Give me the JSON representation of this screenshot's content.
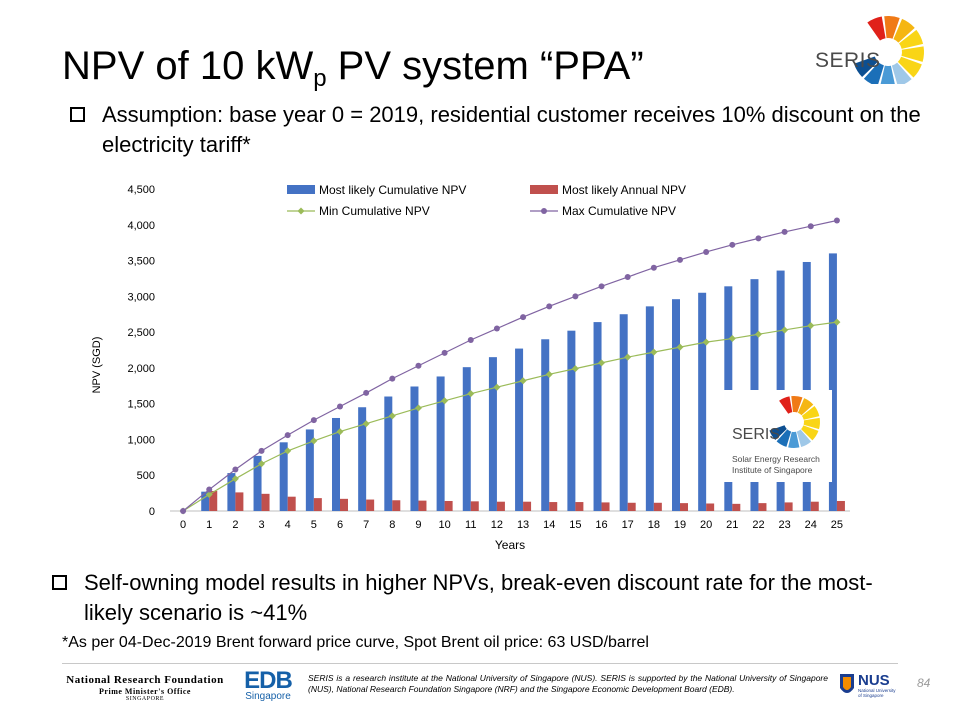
{
  "slide": {
    "title_pre": "NPV of 10 kW",
    "title_sub": "p",
    "title_post": " PV system “PPA”",
    "logo_text": "SERIS",
    "bullet1": "Assumption: base year 0 = 2019, residential customer receives 10% discount on the electricity tariff*",
    "bullet2": "Self-owning model results in higher NPVs, break-even discount rate for the most-likely scenario is ~41%",
    "footnote": "*As per 04-Dec-2019 Brent forward price curve, Spot Brent oil price: 63 USD/barrel",
    "page_number": "84"
  },
  "footer": {
    "nrf_line1": "National Research Foundation",
    "nrf_line2": "Prime Minister's Office",
    "nrf_line3": "SINGAPORE",
    "edb_line1": "EDB",
    "edb_line2": "Singapore",
    "disclaimer": "SERIS is a research institute at the National University of Singapore (NUS). SERIS is supported by the National University of Singapore (NUS), National Research Foundation Singapore (NRF) and the Singapore Economic Development Board (EDB).",
    "nus_label": "NUS",
    "nus_sub1": "National University",
    "nus_sub2": "of Singapore"
  },
  "inset_logo": {
    "name": "SERIS",
    "line1": "Solar Energy Research",
    "line2": "Institute of Singapore"
  },
  "chart_data": {
    "type": "bar",
    "xlabel": "Years",
    "ylabel": "NPV (SGD)",
    "ylim": [
      0,
      4500
    ],
    "yticks": [
      0,
      500,
      1000,
      1500,
      2000,
      2500,
      3000,
      3500,
      4000,
      4500
    ],
    "grid": false,
    "legend_position": "top",
    "x": [
      0,
      1,
      2,
      3,
      4,
      5,
      6,
      7,
      8,
      9,
      10,
      11,
      12,
      13,
      14,
      15,
      16,
      17,
      18,
      19,
      20,
      21,
      22,
      23,
      24,
      25
    ],
    "series": [
      {
        "name": "Most likely Cumulative NPV",
        "type": "bar",
        "color": "#4472c4",
        "values": [
          0,
          270,
          530,
          770,
          960,
          1140,
          1300,
          1450,
          1600,
          1740,
          1880,
          2010,
          2150,
          2270,
          2400,
          2520,
          2640,
          2750,
          2860,
          2960,
          3050,
          3140,
          3240,
          3360,
          3480,
          3600
        ]
      },
      {
        "name": "Most likely Annual NPV",
        "type": "bar",
        "color": "#c0504d",
        "values": [
          0,
          280,
          260,
          240,
          200,
          180,
          170,
          160,
          150,
          145,
          140,
          135,
          130,
          130,
          125,
          125,
          120,
          115,
          115,
          110,
          105,
          100,
          110,
          120,
          130,
          140
        ]
      },
      {
        "name": "Min Cumulative NPV",
        "type": "line",
        "color": "#9bbb59",
        "values": [
          0,
          230,
          450,
          660,
          840,
          980,
          1110,
          1220,
          1330,
          1440,
          1540,
          1640,
          1730,
          1820,
          1910,
          1990,
          2070,
          2150,
          2220,
          2290,
          2360,
          2410,
          2470,
          2530,
          2590,
          2640
        ]
      },
      {
        "name": "Max Cumulative NPV",
        "type": "line",
        "color": "#8064a2",
        "values": [
          0,
          300,
          580,
          840,
          1060,
          1270,
          1460,
          1650,
          1850,
          2030,
          2210,
          2390,
          2550,
          2710,
          2860,
          3000,
          3140,
          3270,
          3400,
          3510,
          3620,
          3720,
          3810,
          3900,
          3980,
          4060
        ]
      }
    ]
  }
}
